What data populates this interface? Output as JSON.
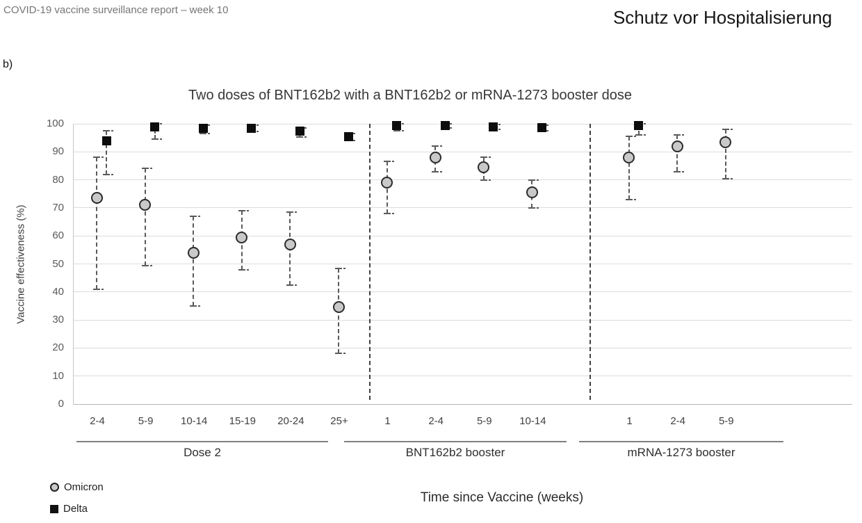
{
  "header": {
    "report_title": "COVID-19 vaccine surveillance report – week 10",
    "page_title": "Schutz vor Hospitalisierung",
    "panel_label": "b)"
  },
  "chart_data": {
    "type": "scatter",
    "title": "Two doses of BNT162b2 with a BNT162b2 or mRNA-1273 booster dose",
    "xlabel": "Time since Vaccine (weeks)",
    "ylabel": "Vaccine effectiveness (%)",
    "ylim": [
      0,
      100
    ],
    "yticks": [
      0,
      10,
      20,
      30,
      40,
      50,
      60,
      70,
      80,
      90,
      100
    ],
    "grid": true,
    "legend_position": "bottom-left",
    "legend": [
      {
        "name": "Omicron",
        "marker": "circle"
      },
      {
        "name": "Delta",
        "marker": "square"
      }
    ],
    "colors": {
      "omicron_fill": "#c9c9c9",
      "omicron_stroke": "#2b2b2b",
      "delta_fill": "#0d0d0d",
      "error_bar": "#595959",
      "gridline": "#dcdcdc",
      "separator": "#3f3f3f"
    },
    "groups": [
      {
        "label": "Dose 2"
      },
      {
        "label": "BNT162b2 booster"
      },
      {
        "label": "mRNA-1273 booster"
      }
    ],
    "points": [
      {
        "slot": 0,
        "group": "Dose 2",
        "x": "2-4",
        "omicron": {
          "v": 73.5,
          "lo": 41,
          "hi": 88
        },
        "delta": {
          "v": 94,
          "lo": 82,
          "hi": 97.5
        }
      },
      {
        "slot": 1,
        "group": "Dose 2",
        "x": "5-9",
        "omicron": {
          "v": 71,
          "lo": 49.5,
          "hi": 84
        },
        "delta": {
          "v": 99,
          "lo": 94.5,
          "hi": 100
        }
      },
      {
        "slot": 2,
        "group": "Dose 2",
        "x": "10-14",
        "omicron": {
          "v": 54,
          "lo": 35,
          "hi": 67
        },
        "delta": {
          "v": 98.3,
          "lo": 96.5,
          "hi": 99.5
        }
      },
      {
        "slot": 3,
        "group": "Dose 2",
        "x": "15-19",
        "omicron": {
          "v": 59.5,
          "lo": 48,
          "hi": 69
        },
        "delta": {
          "v": 98.5,
          "lo": 97.3,
          "hi": 99.4
        }
      },
      {
        "slot": 4,
        "group": "Dose 2",
        "x": "20-24",
        "omicron": {
          "v": 57,
          "lo": 42.5,
          "hi": 68.5
        },
        "delta": {
          "v": 97.3,
          "lo": 95.3,
          "hi": 98.4
        }
      },
      {
        "slot": 5,
        "group": "Dose 2",
        "x": "25+",
        "omicron": {
          "v": 34.5,
          "lo": 18,
          "hi": 48.5
        },
        "delta": {
          "v": 95.4,
          "lo": 94,
          "hi": 96.6
        }
      },
      {
        "slot": 6,
        "group": "BNT162b2 booster",
        "x": "1",
        "omicron": {
          "v": 79,
          "lo": 68,
          "hi": 86.5
        },
        "delta": {
          "v": 99.3,
          "lo": 97.5,
          "hi": 100
        }
      },
      {
        "slot": 7,
        "group": "BNT162b2 booster",
        "x": "2-4",
        "omicron": {
          "v": 88,
          "lo": 83,
          "hi": 92
        },
        "delta": {
          "v": 99.5,
          "lo": 98.6,
          "hi": 100
        }
      },
      {
        "slot": 8,
        "group": "BNT162b2 booster",
        "x": "5-9",
        "omicron": {
          "v": 84.5,
          "lo": 80,
          "hi": 88
        },
        "delta": {
          "v": 99,
          "lo": 98.1,
          "hi": 99.7
        }
      },
      {
        "slot": 9,
        "group": "BNT162b2 booster",
        "x": "10-14",
        "omicron": {
          "v": 75.5,
          "lo": 70,
          "hi": 80
        },
        "delta": {
          "v": 98.7,
          "lo": 97.6,
          "hi": 99.4
        }
      },
      {
        "slot": 11,
        "group": "mRNA-1273 booster",
        "x": "1",
        "omicron": {
          "v": 88,
          "lo": 73,
          "hi": 95.5
        },
        "delta": {
          "v": 99.5,
          "lo": 96,
          "hi": 100
        }
      },
      {
        "slot": 12,
        "group": "mRNA-1273 booster",
        "x": "2-4",
        "omicron": {
          "v": 92,
          "lo": 83,
          "hi": 96
        },
        "delta": null
      },
      {
        "slot": 13,
        "group": "mRNA-1273 booster",
        "x": "5-9",
        "omicron": {
          "v": 93.5,
          "lo": 80.5,
          "hi": 98
        },
        "delta": null
      }
    ]
  }
}
